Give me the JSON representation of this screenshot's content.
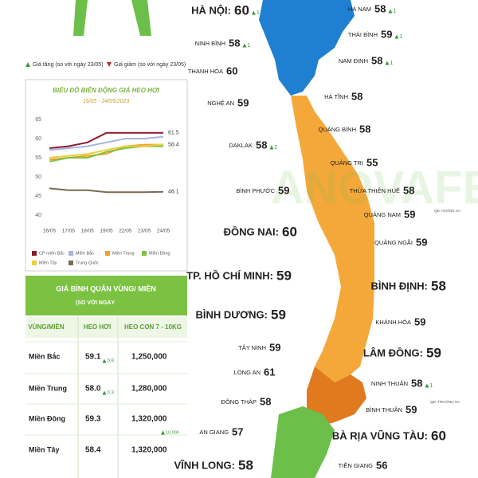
{
  "legend": {
    "up": "Giá tăng (so với ngày 23/05)",
    "down": "Giá giảm (so với ngày 23/05)"
  },
  "watermark": "ANOVAFEED",
  "chart_data": {
    "type": "line",
    "title": "BIỂU ĐỒ BIẾN ĐỘNG GIÁ HEO HƠI",
    "subtitle": "16/05 - 24/05/2023",
    "categories": [
      "16/05",
      "17/05",
      "18/05",
      "19/05",
      "22/05",
      "23/05",
      "24/05"
    ],
    "ylim": [
      40,
      65
    ],
    "yticks": [
      40,
      45,
      50,
      55,
      60,
      65
    ],
    "grid": false,
    "series": [
      {
        "name": "CP miền Bắc",
        "color": "#8b1a2b",
        "values": [
          57.5,
          58,
          59,
          61.5,
          61.5,
          61.5,
          61.5
        ],
        "label_last": true
      },
      {
        "name": "Miền Bắc",
        "color": "#a9b3e0",
        "values": [
          57,
          57.5,
          58,
          59,
          60,
          60,
          60.5
        ]
      },
      {
        "name": "Miền Trung",
        "color": "#f0a030",
        "values": [
          54.5,
          55,
          55.5,
          56,
          58,
          58.4,
          58.4
        ],
        "label_last": true
      },
      {
        "name": "Miền Đông",
        "color": "#7dc242",
        "values": [
          54,
          55,
          55,
          56.5,
          57.5,
          58,
          58
        ]
      },
      {
        "name": "Miền Tây",
        "color": "#e8d040",
        "values": [
          55,
          55.5,
          56,
          57,
          58,
          58,
          58.5
        ]
      },
      {
        "name": "Trung Quốc",
        "color": "#7a6a50",
        "values": [
          47,
          46.5,
          46.5,
          46,
          46,
          46,
          46.1
        ],
        "label_last": true
      }
    ]
  },
  "table": {
    "title": "GIÁ BÌNH QUÂN VÙNG/ MIỀN",
    "subtitle": "(SO VỚI NGÀY",
    "header": [
      "VÙNG/MIỀN",
      "HEO HƠI",
      "HEO CON 7 - 10KG"
    ],
    "rows": [
      {
        "region": "Miền Bắc",
        "price": "59.1",
        "price_change": "0.9",
        "piglet": "1,250,000"
      },
      {
        "region": "Miền Trung",
        "price": "58.0",
        "price_change": "0.3",
        "piglet": "1,280,000"
      },
      {
        "region": "Miền Đông",
        "price": "59.3",
        "piglet": "1,320,000",
        "piglet_change": "10.000"
      },
      {
        "region": "Miền Tây",
        "price": "58.4",
        "piglet": "1,320,000"
      }
    ]
  },
  "map": {
    "islands": [
      "QĐ. HOÀNG SA",
      "QĐ. TRƯỜNG SA"
    ],
    "provinces": [
      {
        "name": "HÀ NỘI:",
        "value": 60,
        "change": 1,
        "big": true
      },
      {
        "name": "HÀ NAM",
        "value": 58,
        "change": 1
      },
      {
        "name": "THÁI BÌNH",
        "value": 59,
        "change": 1
      },
      {
        "name": "NINH BÌNH",
        "value": 58,
        "change": 1
      },
      {
        "name": "NAM ĐỊNH",
        "value": 58,
        "change": 1
      },
      {
        "name": "THANH HÓA",
        "value": 60
      },
      {
        "name": "HÀ TĨNH",
        "value": 58
      },
      {
        "name": "NGHỆ AN",
        "value": 59
      },
      {
        "name": "QUẢNG BÌNH",
        "value": 58
      },
      {
        "name": "DAKLAK",
        "value": 58,
        "change": 2
      },
      {
        "name": "QUẢNG TRỊ",
        "value": 55
      },
      {
        "name": "BÌNH PHƯỚC",
        "value": 59
      },
      {
        "name": "THỪA THIÊN HUẾ",
        "value": 58
      },
      {
        "name": "QUẢNG NAM",
        "value": 59
      },
      {
        "name": "ĐỒNG NAI:",
        "value": 60,
        "big": true
      },
      {
        "name": "QUẢNG NGÃI",
        "value": 59
      },
      {
        "name": "TP. HỒ CHÍ MINH:",
        "value": 59,
        "big": true
      },
      {
        "name": "BÌNH ĐỊNH:",
        "value": 58,
        "big": true
      },
      {
        "name": "BÌNH DƯƠNG:",
        "value": 59,
        "big": true
      },
      {
        "name": "KHÁNH HÒA",
        "value": 59
      },
      {
        "name": "TÂY NINH",
        "value": 59
      },
      {
        "name": "LÂM ĐỒNG:",
        "value": 59,
        "big": true
      },
      {
        "name": "LONG AN",
        "value": 61
      },
      {
        "name": "ĐỒNG THÁP",
        "value": 58
      },
      {
        "name": "NINH THUẬN",
        "value": 58,
        "change": 1
      },
      {
        "name": "BÌNH THUẬN",
        "value": 59
      },
      {
        "name": "AN GIANG",
        "value": 57
      },
      {
        "name": "BÀ RỊA VŨNG TÀU:",
        "value": 60,
        "big": true
      },
      {
        "name": "VĨNH LONG:",
        "value": 58,
        "big": true
      },
      {
        "name": "TIỀN GIANG",
        "value": 56
      }
    ]
  }
}
